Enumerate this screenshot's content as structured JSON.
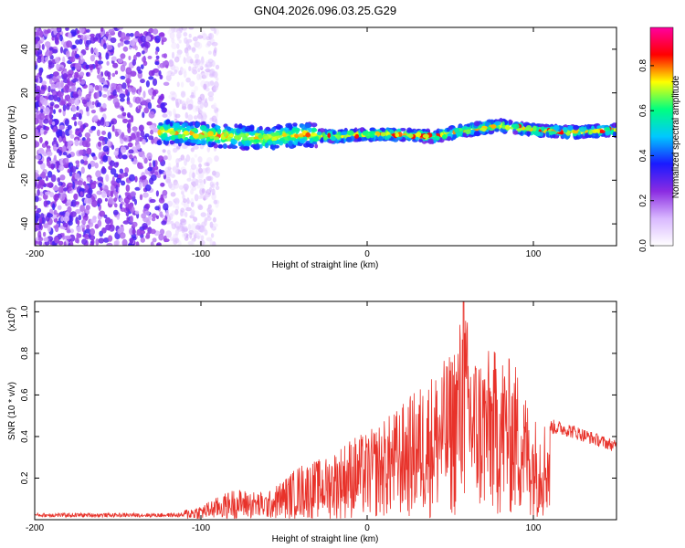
{
  "title": "GN04.2026.096.03.25.G29",
  "colors": {
    "snr_line": "#e8322a",
    "colormap": [
      "#ffffff",
      "#d9b8ff",
      "#8a2be2",
      "#1a1aff",
      "#00c8ff",
      "#00ff80",
      "#ffff00",
      "#ff0000",
      "#ff00a0"
    ]
  },
  "chart_data": [
    {
      "type": "heatmap",
      "xlabel": "Height of straight line (km)",
      "ylabel": "Frequency (Hz)",
      "xlim": [
        -200,
        150
      ],
      "ylim": [
        -50,
        50
      ],
      "xticks": [
        "-200",
        "-100",
        "0",
        "100"
      ],
      "yticks": [
        "-40",
        "-20",
        "0",
        "20",
        "40"
      ],
      "colorbar": {
        "label": "Normalized spectral amplitude",
        "range": [
          0.0,
          0.97
        ],
        "ticks": [
          "0.0",
          "0.2",
          "0.4",
          "0.6",
          "0.8"
        ]
      },
      "ridge": {
        "description_points_x": [
          -120,
          -100,
          -80,
          -60,
          -40,
          -20,
          0,
          20,
          40,
          60,
          80,
          100,
          120,
          150
        ],
        "freq_y": [
          2,
          1,
          0,
          -1,
          1,
          0,
          1,
          1,
          0,
          3,
          5,
          3,
          2,
          3
        ]
      }
    },
    {
      "type": "line",
      "xlabel": "Height of straight line (km)",
      "ylabel": "SNR (10 * v/v)",
      "yscale_label": "(x10",
      "yscale_exp": "4",
      "yscale_close": ")",
      "xlim": [
        -200,
        150
      ],
      "ylim": [
        0,
        1.05
      ],
      "xticks": [
        "-200",
        "-100",
        "0",
        "100"
      ],
      "yticks": [
        "0.2",
        "0.4",
        "0.6",
        "0.8",
        "1.0"
      ],
      "series": [
        {
          "envelope_x": [
            -200,
            -150,
            -120,
            -100,
            -80,
            -60,
            -40,
            -25,
            -10,
            0,
            20,
            40,
            50,
            58,
            65,
            80,
            90,
            100,
            120,
            150
          ],
          "envelope_y": [
            0.02,
            0.02,
            0.03,
            0.07,
            0.15,
            0.13,
            0.27,
            0.3,
            0.4,
            0.42,
            0.55,
            0.72,
            0.8,
            1.05,
            0.82,
            0.82,
            0.75,
            0.5,
            0.47,
            0.38
          ]
        }
      ]
    }
  ]
}
